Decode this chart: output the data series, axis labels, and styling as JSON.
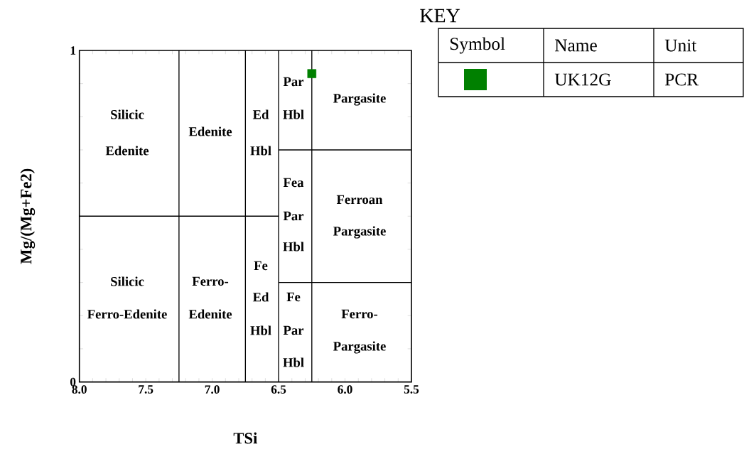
{
  "chart_data": {
    "type": "scatter",
    "xlabel": "TSi",
    "ylabel": "Mg/(Mg+Fe2)",
    "legend_title": "KEY",
    "legend": "top right",
    "xlim": [
      8.0,
      5.5
    ],
    "ylim": [
      0,
      1
    ],
    "xticks": [
      {
        "value": 8.0,
        "label": "8.0"
      },
      {
        "value": 7.9,
        "label": null
      },
      {
        "value": 7.8,
        "label": null
      },
      {
        "value": 7.7,
        "label": null
      },
      {
        "value": 7.6,
        "label": null
      },
      {
        "value": 7.5,
        "label": "7.5"
      },
      {
        "value": 7.4,
        "label": null
      },
      {
        "value": 7.3,
        "label": null
      },
      {
        "value": 7.2,
        "label": null
      },
      {
        "value": 7.1,
        "label": null
      },
      {
        "value": 7.0,
        "label": "7.0"
      },
      {
        "value": 6.9,
        "label": null
      },
      {
        "value": 6.8,
        "label": null
      },
      {
        "value": 6.7,
        "label": null
      },
      {
        "value": 6.6,
        "label": null
      },
      {
        "value": 6.5,
        "label": "6.5"
      },
      {
        "value": 6.4,
        "label": null
      },
      {
        "value": 6.3,
        "label": null
      },
      {
        "value": 6.2,
        "label": null
      },
      {
        "value": 6.1,
        "label": null
      },
      {
        "value": 6.0,
        "label": "6.0"
      },
      {
        "value": 5.9,
        "label": null
      },
      {
        "value": 5.8,
        "label": null
      },
      {
        "value": 5.7,
        "label": null
      },
      {
        "value": 5.6,
        "label": null
      },
      {
        "value": 5.5,
        "label": "5.5"
      }
    ],
    "yticks": [
      0,
      {
        "value": 0.1,
        "label": null
      },
      {
        "value": 0.2,
        "label": null
      },
      {
        "value": 0.3,
        "label": null
      },
      {
        "value": 0.4,
        "label": null
      },
      {
        "value": 0.5,
        "label": null
      },
      {
        "value": 0.6,
        "label": null
      },
      {
        "value": 0.7,
        "label": null
      },
      {
        "value": 0.8,
        "label": null
      },
      {
        "value": 0.9,
        "label": null
      },
      1
    ],
    "series": [
      {
        "name": "UK12G",
        "color": "#008000",
        "marker": "square",
        "x": [
          6.25
        ],
        "values": [
          0.93
        ]
      },
      {
        "type": "line",
        "color": "#000000",
        "x": [
          7.25,
          7.25
        ],
        "values": [
          0,
          1
        ]
      },
      {
        "type": "line",
        "color": "#000000",
        "x": [
          6.75,
          6.75
        ],
        "values": [
          0,
          1
        ]
      },
      {
        "type": "line",
        "color": "#000000",
        "x": [
          6.5,
          6.5
        ],
        "values": [
          0,
          1
        ]
      },
      {
        "type": "line",
        "color": "#000000",
        "x": [
          6.25,
          6.25
        ],
        "values": [
          0,
          1
        ]
      },
      {
        "type": "line",
        "color": "#000000",
        "x": [
          8.0,
          6.5
        ],
        "values": [
          0.5,
          0.5
        ]
      },
      {
        "type": "line",
        "color": "#000000",
        "x": [
          6.5,
          5.5
        ],
        "values": [
          0.7,
          0.7
        ]
      },
      {
        "type": "line",
        "color": "#000000",
        "x": [
          6.5,
          5.5
        ],
        "values": [
          0.3,
          0.3
        ]
      }
    ],
    "annotations": [
      "Symbol",
      "Name",
      "Unit",
      "PCR",
      "Silicic",
      "Edenite",
      "Edenite",
      "Ed",
      "Hbl",
      "Par",
      "Hbl",
      "Pargasite",
      "Fea",
      "Par",
      "Hbl",
      "Ferroan",
      "Pargasite",
      "Fe",
      "Silicic",
      "Ferro-",
      "Ferro-Edenite",
      "Edenite",
      "Ed",
      "Hbl",
      "Fe",
      "Par",
      "Hbl",
      "Ferro-",
      "Pargasite"
    ]
  }
}
